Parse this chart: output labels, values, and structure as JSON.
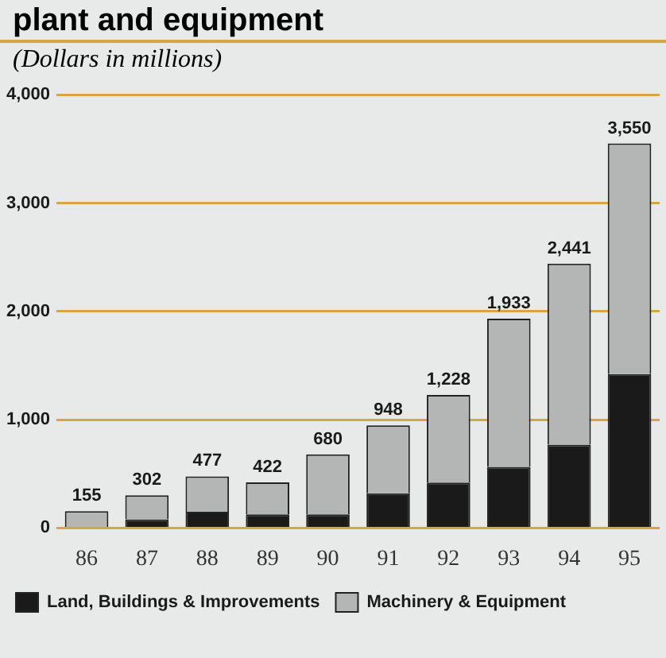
{
  "chart_data": {
    "type": "bar",
    "title": "plant and equipment",
    "subtitle": "(Dollars in millions)",
    "categories": [
      "86",
      "87",
      "88",
      "89",
      "90",
      "91",
      "92",
      "93",
      "94",
      "95"
    ],
    "series": [
      {
        "name": "Land, Buildings & Improvements",
        "color": "#1a1a1a",
        "values": [
          null,
          80,
          150,
          125,
          125,
          320,
          420,
          565,
          770,
          1420
        ]
      },
      {
        "name": "Machinery & Equipment",
        "color": "#b4b6b6",
        "values": [
          155,
          222,
          327,
          297,
          555,
          628,
          808,
          1368,
          1671,
          2130
        ]
      }
    ],
    "stacked": true,
    "totals": [
      "155",
      "302",
      "477",
      "422",
      "680",
      "948",
      "1,228",
      "1,933",
      "2,441",
      "3,550"
    ],
    "ylim": [
      0,
      4000
    ],
    "yticks": [
      {
        "value": 0,
        "label": "0"
      },
      {
        "value": 1000,
        "label": "1,000"
      },
      {
        "value": 2000,
        "label": "2,000"
      },
      {
        "value": 3000,
        "label": "3,000"
      },
      {
        "value": 4000,
        "label": "4,000"
      }
    ],
    "grid": "y",
    "legend": "bottom"
  }
}
